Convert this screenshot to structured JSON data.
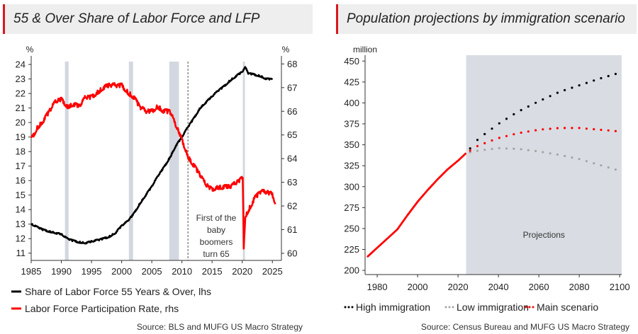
{
  "charts": [
    {
      "title": "55 & Over Share of Labor Force and LFP",
      "source": "Source: BLS and MUFG US Macro Strategy",
      "chart_data": {
        "type": "line",
        "left_axis_unit": "%",
        "right_axis_unit": "%",
        "x_ticks": [
          1985,
          1990,
          1995,
          2000,
          2005,
          2010,
          2015,
          2020,
          2025
        ],
        "y_left_ticks": [
          11,
          12,
          13,
          14,
          15,
          16,
          17,
          18,
          19,
          20,
          21,
          22,
          23,
          24
        ],
        "y_right_ticks": [
          60,
          61,
          62,
          63,
          64,
          65,
          66,
          67,
          68
        ],
        "xlim": [
          1985,
          2026.5
        ],
        "ylim_left": [
          10.5,
          24.2
        ],
        "ylim_right": [
          59.7,
          68.1
        ],
        "recessions": [
          [
            1990.6,
            1991.2
          ],
          [
            2001.2,
            2001.9
          ],
          [
            2007.9,
            2009.5
          ],
          [
            2020.1,
            2020.4
          ]
        ],
        "vline": {
          "x": 2011,
          "label_lines": [
            "First of the",
            "baby",
            "boomers",
            "turn 65"
          ]
        },
        "series": [
          {
            "name": "Share of Labor Force 55 Years & Over, lhs",
            "axis": "left",
            "color": "#000000",
            "x": [
              1985,
              1986,
              1987,
              1988,
              1989,
              1990,
              1991,
              1992,
              1993,
              1994,
              1995,
              1996,
              1997,
              1998,
              1999,
              2000,
              2001,
              2002,
              2003,
              2004,
              2005,
              2006,
              2007,
              2008,
              2009,
              2010,
              2011,
              2012,
              2013,
              2014,
              2015,
              2016,
              2017,
              2018,
              2019,
              2020,
              2020.5,
              2021,
              2022,
              2023,
              2024,
              2025
            ],
            "values": [
              13.0,
              12.8,
              12.6,
              12.5,
              12.4,
              12.3,
              12.0,
              11.85,
              11.75,
              11.7,
              11.8,
              11.9,
              12.0,
              12.15,
              12.4,
              12.9,
              13.2,
              13.7,
              14.4,
              15.0,
              15.6,
              16.3,
              16.9,
              17.6,
              18.4,
              19.0,
              19.7,
              20.3,
              21.0,
              21.4,
              21.8,
              22.2,
              22.5,
              22.9,
              23.2,
              23.5,
              23.8,
              23.4,
              23.3,
              23.2,
              23.0,
              23.0
            ]
          },
          {
            "name": "Labor Force Participation Rate, rhs",
            "axis": "right",
            "color": "#ff0000",
            "x": [
              1985,
              1986,
              1987,
              1988,
              1989,
              1990,
              1991,
              1992,
              1993,
              1994,
              1995,
              1996,
              1997,
              1998,
              1999,
              2000,
              2001,
              2002,
              2003,
              2004,
              2005,
              2006,
              2007,
              2008,
              2009,
              2010,
              2011,
              2012,
              2013,
              2014,
              2015,
              2016,
              2017,
              2018,
              2019,
              2020.1,
              2020.25,
              2020.5,
              2021,
              2022,
              2023,
              2024,
              2025,
              2025.5
            ],
            "values": [
              64.8,
              65.3,
              65.6,
              66.0,
              66.4,
              66.5,
              66.2,
              66.3,
              66.2,
              66.6,
              66.6,
              66.8,
              67.0,
              67.1,
              67.1,
              67.1,
              66.8,
              66.6,
              66.2,
              66.0,
              66.0,
              66.2,
              66.0,
              66.0,
              65.4,
              64.8,
              64.1,
              63.7,
              63.3,
              62.9,
              62.7,
              62.8,
              62.8,
              62.8,
              63.0,
              63.2,
              60.2,
              61.5,
              61.8,
              62.3,
              62.6,
              62.6,
              62.5,
              62.1
            ]
          }
        ]
      }
    },
    {
      "title": "Population projections by immigration scenario",
      "source": "Source: Census Bureau and MUFG US Macro Strategy",
      "chart_data": {
        "type": "line",
        "ylabel": "million",
        "x_ticks": [
          1980,
          2000,
          2020,
          2040,
          2060,
          2080,
          2100
        ],
        "y_ticks": [
          200,
          225,
          250,
          275,
          300,
          325,
          350,
          375,
          400,
          425,
          450
        ],
        "xlim": [
          1974,
          2101
        ],
        "ylim": [
          195,
          457
        ],
        "shaded_region": {
          "x_start": 2024,
          "x_end": 2101,
          "label": "Projections"
        },
        "historical": {
          "color": "#ff0000",
          "x": [
            1975,
            1980,
            1985,
            1990,
            1995,
            2000,
            2005,
            2010,
            2015,
            2020,
            2024
          ],
          "values": [
            216,
            227,
            238,
            249,
            266,
            282,
            296,
            309,
            321,
            331,
            340
          ]
        },
        "series": [
          {
            "name": "High immigration",
            "color": "#000000",
            "style": "dotted",
            "x": [
              2024,
              2030,
              2040,
              2050,
              2060,
              2070,
              2080,
              2090,
              2100
            ],
            "values": [
              340,
              357,
              375,
              390,
              402,
              413,
              421,
              429,
              436
            ]
          },
          {
            "name": "Low immigration",
            "color": "#a6a6a6",
            "style": "dotted",
            "x": [
              2024,
              2030,
              2040,
              2050,
              2060,
              2070,
              2080,
              2090,
              2100
            ],
            "values": [
              340,
              343,
              346,
              345,
              342,
              338,
              333,
              326,
              319
            ]
          },
          {
            "name": "Main scenario",
            "color": "#ff0000",
            "style": "dotted",
            "x": [
              2024,
              2030,
              2040,
              2050,
              2060,
              2070,
              2080,
              2090,
              2100
            ],
            "values": [
              340,
              349,
              358,
              364,
              368,
              370,
              370,
              368,
              366
            ]
          }
        ]
      }
    }
  ]
}
